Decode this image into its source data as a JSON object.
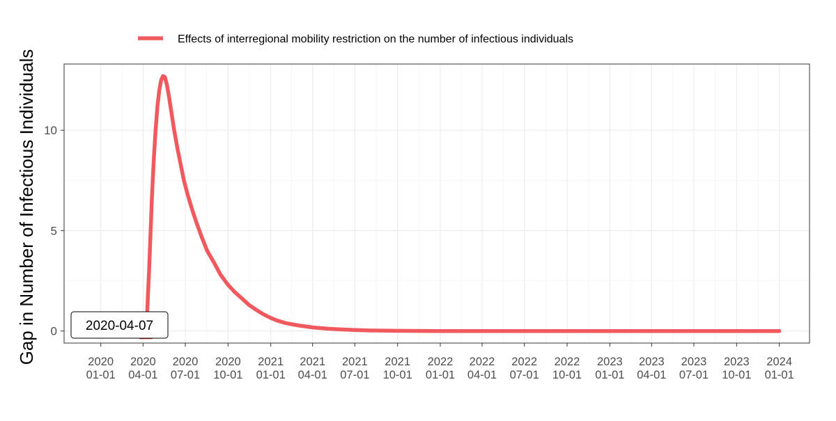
{
  "chart_data": {
    "type": "line",
    "title": "",
    "xlabel": "",
    "ylabel": "Gap in Number of Infectious Individuals",
    "legend": {
      "placement": "top",
      "entries": [
        {
          "name": "Effects of interregional mobility restriction on the number of infectious individuals",
          "color": "#f05a5f"
        }
      ]
    },
    "grid": true,
    "xlim": [
      "2019-10-14",
      "2024-03-06"
    ],
    "ylim": [
      -0.6,
      13.3
    ],
    "x_ticks": [
      {
        "date": "2020-01-01",
        "label": [
          "2020",
          "01-01"
        ]
      },
      {
        "date": "2020-04-01",
        "label": [
          "2020",
          "04-01"
        ]
      },
      {
        "date": "2020-07-01",
        "label": [
          "2020",
          "07-01"
        ]
      },
      {
        "date": "2020-10-01",
        "label": [
          "2020",
          "10-01"
        ]
      },
      {
        "date": "2021-01-01",
        "label": [
          "2021",
          "01-01"
        ]
      },
      {
        "date": "2021-04-01",
        "label": [
          "2021",
          "04-01"
        ]
      },
      {
        "date": "2021-07-01",
        "label": [
          "2021",
          "07-01"
        ]
      },
      {
        "date": "2021-10-01",
        "label": [
          "2021",
          "10-01"
        ]
      },
      {
        "date": "2022-01-01",
        "label": [
          "2022",
          "01-01"
        ]
      },
      {
        "date": "2022-04-01",
        "label": [
          "2022",
          "04-01"
        ]
      },
      {
        "date": "2022-07-01",
        "label": [
          "2022",
          "07-01"
        ]
      },
      {
        "date": "2022-10-01",
        "label": [
          "2022",
          "10-01"
        ]
      },
      {
        "date": "2023-01-01",
        "label": [
          "2023",
          "01-01"
        ]
      },
      {
        "date": "2023-04-01",
        "label": [
          "2023",
          "04-01"
        ]
      },
      {
        "date": "2023-07-01",
        "label": [
          "2023",
          "07-01"
        ]
      },
      {
        "date": "2023-10-01",
        "label": [
          "2023",
          "10-01"
        ]
      },
      {
        "date": "2024-01-01",
        "label": [
          "2024",
          "01-01"
        ]
      }
    ],
    "y_ticks": [
      0,
      5,
      10
    ],
    "annotation": {
      "label": "2020-04-07",
      "date": "2020-04-07",
      "value": 0,
      "color": "#d62728"
    },
    "series": [
      {
        "name": "Effects of interregional mobility restriction on the number of infectious individuals",
        "color": "#f05a5f",
        "x": [
          "2020-04-01",
          "2020-04-07",
          "2020-04-09",
          "2020-04-11",
          "2020-04-14",
          "2020-04-17",
          "2020-04-20",
          "2020-04-24",
          "2020-04-28",
          "2020-05-02",
          "2020-05-06",
          "2020-05-10",
          "2020-05-14",
          "2020-05-18",
          "2020-05-22",
          "2020-05-26",
          "2020-06-01",
          "2020-06-07",
          "2020-06-14",
          "2020-06-21",
          "2020-06-28",
          "2020-07-06",
          "2020-07-15",
          "2020-07-25",
          "2020-08-05",
          "2020-08-17",
          "2020-09-01",
          "2020-09-15",
          "2020-10-01",
          "2020-10-15",
          "2020-11-01",
          "2020-11-15",
          "2020-12-01",
          "2020-12-15",
          "2021-01-01",
          "2021-01-15",
          "2021-02-01",
          "2021-03-01",
          "2021-04-01",
          "2021-05-01",
          "2021-06-01",
          "2021-07-01",
          "2021-08-01",
          "2021-09-01",
          "2021-10-01",
          "2022-01-01",
          "2022-07-01",
          "2023-01-01",
          "2023-07-01",
          "2024-01-01"
        ],
        "values": [
          -0.25,
          -0.25,
          0.4,
          1.5,
          3.0,
          4.8,
          6.6,
          8.5,
          10.0,
          11.2,
          12.0,
          12.5,
          12.7,
          12.65,
          12.3,
          11.8,
          10.9,
          10.0,
          9.1,
          8.3,
          7.5,
          6.8,
          6.1,
          5.4,
          4.7,
          4.0,
          3.4,
          2.8,
          2.3,
          1.95,
          1.6,
          1.3,
          1.05,
          0.85,
          0.65,
          0.52,
          0.4,
          0.28,
          0.18,
          0.12,
          0.08,
          0.05,
          0.03,
          0.02,
          0.01,
          0.0,
          0.0,
          0.0,
          0.0,
          0.0
        ]
      }
    ]
  }
}
